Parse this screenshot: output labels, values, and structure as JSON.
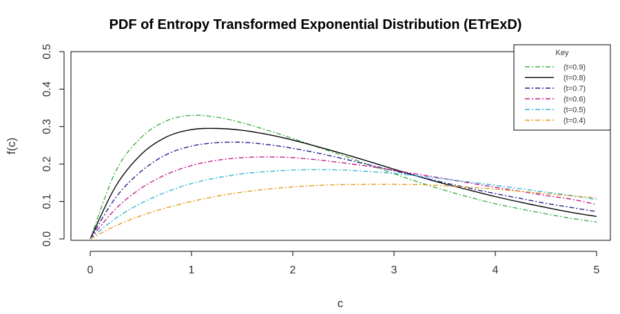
{
  "chart_data": {
    "type": "line",
    "title": "PDF of Entropy Transformed Exponential Distribution (ETrExD)",
    "xlabel": "c",
    "ylabel": "f(c)",
    "xlim": [
      0,
      5
    ],
    "ylim": [
      0,
      0.5
    ],
    "x_ticks": [
      "0",
      "1",
      "2",
      "3",
      "4",
      "5"
    ],
    "y_ticks": [
      "0.0",
      "0.1",
      "0.2",
      "0.3",
      "0.4",
      "0.5"
    ],
    "grid": false,
    "legend": {
      "title": "Key",
      "placement": "top-right"
    },
    "x": [
      0,
      0.25,
      0.5,
      0.75,
      1,
      1.25,
      1.5,
      1.75,
      2,
      2.25,
      2.5,
      2.75,
      3,
      3.25,
      3.5,
      3.75,
      4,
      4.25,
      4.5,
      4.75,
      5
    ],
    "series": [
      {
        "name": "(t=0.9)",
        "color": "#3cb043",
        "dash": "7,3,2,3",
        "values": [
          0,
          0.18,
          0.27,
          0.315,
          0.33,
          0.325,
          0.31,
          0.29,
          0.268,
          0.245,
          0.222,
          0.198,
          0.174,
          0.151,
          0.13,
          0.111,
          0.094,
          0.08,
          0.067,
          0.055,
          0.045
        ]
      },
      {
        "name": "(t=0.8)",
        "color": "#000000",
        "dash": "",
        "values": [
          0,
          0.14,
          0.225,
          0.272,
          0.292,
          0.295,
          0.29,
          0.279,
          0.264,
          0.246,
          0.227,
          0.207,
          0.186,
          0.166,
          0.147,
          0.13,
          0.113,
          0.098,
          0.084,
          0.071,
          0.06
        ]
      },
      {
        "name": "(t=0.7)",
        "color": "#1f1f8f",
        "dash": "7,3,2,3",
        "values": [
          0,
          0.11,
          0.18,
          0.225,
          0.248,
          0.257,
          0.258,
          0.252,
          0.242,
          0.229,
          0.214,
          0.198,
          0.182,
          0.166,
          0.15,
          0.135,
          0.121,
          0.108,
          0.095,
          0.084,
          0.073
        ]
      },
      {
        "name": "(t=0.6)",
        "color": "#c2188c",
        "dash": "7,3,2,3",
        "values": [
          0,
          0.08,
          0.135,
          0.172,
          0.196,
          0.21,
          0.217,
          0.219,
          0.217,
          0.211,
          0.203,
          0.194,
          0.183,
          0.172,
          0.161,
          0.149,
          0.138,
          0.127,
          0.116,
          0.106,
          0.092
        ]
      },
      {
        "name": "(t=0.5)",
        "color": "#33b5d5",
        "dash": "7,3,2,3",
        "values": [
          0,
          0.055,
          0.095,
          0.125,
          0.148,
          0.163,
          0.174,
          0.18,
          0.184,
          0.185,
          0.184,
          0.18,
          0.175,
          0.168,
          0.16,
          0.152,
          0.143,
          0.134,
          0.125,
          0.116,
          0.105
        ]
      },
      {
        "name": "(t=0.4)",
        "color": "#e69a1a",
        "dash": "7,3,2,3",
        "values": [
          0,
          0.035,
          0.062,
          0.083,
          0.1,
          0.114,
          0.125,
          0.133,
          0.139,
          0.143,
          0.145,
          0.146,
          0.146,
          0.145,
          0.142,
          0.138,
          0.133,
          0.127,
          0.121,
          0.115,
          0.11
        ]
      }
    ]
  }
}
